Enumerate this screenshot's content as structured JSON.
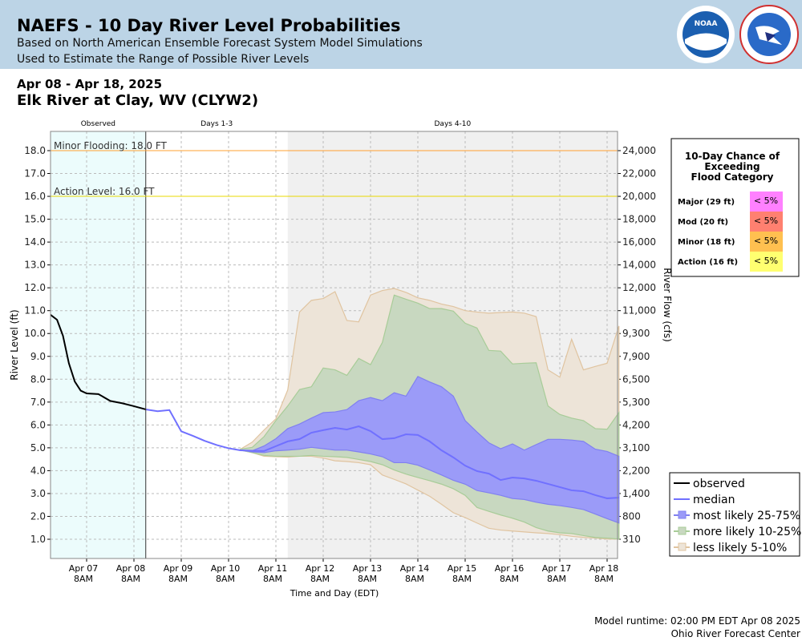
{
  "header": {
    "title": "NAEFS - 10 Day River Level Probabilities",
    "subtitle1": "Based on North American Ensemble Forecast System Model Simulations",
    "subtitle2": "Used to Estimate the Range of Possible River Levels",
    "logos": [
      "NOAA",
      "NATIONAL WEATHER SERVICE"
    ]
  },
  "date_range": "Apr 08 - Apr 18, 2025",
  "location": "Elk River at Clay, WV (CLYW2)",
  "footer": {
    "runtime": "Model runtime: 02:00 PM EDT Apr 08 2025",
    "center": "Ohio River Forecast Center"
  },
  "colors": {
    "observed": "#000000",
    "median": "#7070ff",
    "band_25_75": "#9b9bf8",
    "band_10_25": "#c8d8c0",
    "band_5_10": "#ede4d8",
    "minor": "#ffa030",
    "action": "#e8d800",
    "observed_bg": "#ecfcfc",
    "days4_10_bg": "#f0f0f0"
  },
  "chart_data": {
    "type": "area",
    "xlabel": "Time and Day (EDT)",
    "ylabel": "River Level (ft)",
    "ylabel_right": "River Flow (cfs)",
    "ylim": [
      0.2,
      19.0
    ],
    "xlim": [
      "2025-04-06T13:40",
      "2025-04-18T13:20"
    ],
    "grid": true,
    "period_labels": [
      {
        "label": "Observed",
        "start": "2025-04-06T13:40",
        "end": "2025-04-08T14:00"
      },
      {
        "label": "Days 1-3",
        "start": "2025-04-08T14:00",
        "end": "2025-04-11T14:00"
      },
      {
        "label": "Days 4-10",
        "start": "2025-04-11T14:00",
        "end": "2025-04-18T13:20"
      }
    ],
    "yticks": [
      1,
      2,
      3,
      4,
      5,
      6,
      7,
      8,
      9,
      10,
      11,
      12,
      13,
      14,
      15,
      16,
      17,
      18
    ],
    "yticks_right": [
      {
        "stage": 1,
        "label": "310"
      },
      {
        "stage": 2,
        "label": "800"
      },
      {
        "stage": 3,
        "label": "1,400"
      },
      {
        "stage": 4,
        "label": "2,200"
      },
      {
        "stage": 5,
        "label": "3,100"
      },
      {
        "stage": 6,
        "label": "4,200"
      },
      {
        "stage": 7,
        "label": "5,300"
      },
      {
        "stage": 8,
        "label": "6,500"
      },
      {
        "stage": 9,
        "label": "7,900"
      },
      {
        "stage": 10,
        "label": "9,300"
      },
      {
        "stage": 11,
        "label": "11,000"
      },
      {
        "stage": 12,
        "label": "12,000"
      },
      {
        "stage": 13,
        "label": "14,000"
      },
      {
        "stage": 14,
        "label": "16,000"
      },
      {
        "stage": 15,
        "label": "18,000"
      },
      {
        "stage": 16,
        "label": "20,000"
      },
      {
        "stage": 17,
        "label": "22,000"
      },
      {
        "stage": 18,
        "label": "24,000"
      }
    ],
    "xticks": [
      {
        "t": "2025-04-07T08:00",
        "l1": "Apr 07",
        "l2": "8AM"
      },
      {
        "t": "2025-04-08T08:00",
        "l1": "Apr 08",
        "l2": "8AM"
      },
      {
        "t": "2025-04-09T08:00",
        "l1": "Apr 09",
        "l2": "8AM"
      },
      {
        "t": "2025-04-10T08:00",
        "l1": "Apr 10",
        "l2": "8AM"
      },
      {
        "t": "2025-04-11T08:00",
        "l1": "Apr 11",
        "l2": "8AM"
      },
      {
        "t": "2025-04-12T08:00",
        "l1": "Apr 12",
        "l2": "8AM"
      },
      {
        "t": "2025-04-13T08:00",
        "l1": "Apr 13",
        "l2": "8AM"
      },
      {
        "t": "2025-04-14T08:00",
        "l1": "Apr 14",
        "l2": "8AM"
      },
      {
        "t": "2025-04-15T08:00",
        "l1": "Apr 15",
        "l2": "8AM"
      },
      {
        "t": "2025-04-16T08:00",
        "l1": "Apr 16",
        "l2": "8AM"
      },
      {
        "t": "2025-04-17T08:00",
        "l1": "Apr 17",
        "l2": "8AM"
      },
      {
        "t": "2025-04-18T08:00",
        "l1": "Apr 18",
        "l2": "8AM"
      }
    ],
    "thresholds": [
      {
        "label": "Minor Flooding: 18.0 FT",
        "value": 18.0,
        "color": "#ffa030"
      },
      {
        "label": "Action Level: 16.0 FT",
        "value": 16.0,
        "color": "#e8d800"
      }
    ],
    "observed": {
      "name": "observed",
      "t": [
        "2025-04-06T13:40",
        "2025-04-06T17:00",
        "2025-04-06T20:00",
        "2025-04-06T23:00",
        "2025-04-07T02:00",
        "2025-04-07T05:00",
        "2025-04-07T08:00",
        "2025-04-07T14:00",
        "2025-04-07T20:00",
        "2025-04-08T02:00",
        "2025-04-08T08:00",
        "2025-04-08T14:00"
      ],
      "y": [
        10.82,
        10.6,
        9.9,
        8.7,
        7.9,
        7.5,
        7.38,
        7.35,
        7.05,
        6.95,
        6.82,
        6.68
      ]
    },
    "median": {
      "name": "median",
      "t": [
        "2025-04-08T14:00",
        "2025-04-08T20:00",
        "2025-04-09T02:00",
        "2025-04-09T08:00",
        "2025-04-09T14:00",
        "2025-04-09T20:00",
        "2025-04-10T02:00",
        "2025-04-10T08:00"
      ],
      "y": [
        6.68,
        6.6,
        6.65,
        5.72,
        5.52,
        5.3,
        5.12,
        4.98
      ]
    },
    "forecast_start": "2025-04-10T14:00",
    "forecast_step_hours": 6,
    "median_forecast": [
      4.89,
      4.87,
      4.86,
      5.07,
      5.28,
      5.38,
      5.66,
      5.77,
      5.87,
      5.8,
      5.94,
      5.73,
      5.38,
      5.42,
      5.59,
      5.56,
      5.28,
      4.89,
      4.58,
      4.22,
      3.98,
      3.87,
      3.59,
      3.7,
      3.66,
      3.56,
      3.42,
      3.28,
      3.14,
      3.1,
      2.93,
      2.79,
      2.82
    ],
    "series": [
      {
        "name": "less likely 5-10%",
        "upper": [
          4.94,
          5.25,
          5.78,
          6.27,
          7.53,
          10.94,
          11.45,
          11.53,
          11.83,
          10.57,
          10.51,
          11.68,
          11.88,
          11.97,
          11.8,
          11.56,
          11.45,
          11.29,
          11.18,
          11.0,
          10.94,
          10.89,
          10.92,
          10.94,
          10.89,
          10.74,
          8.41,
          8.09,
          9.75,
          8.41,
          8.56,
          8.7,
          10.33
        ],
        "lower": [
          4.9,
          4.79,
          4.63,
          4.61,
          4.59,
          4.63,
          4.63,
          4.55,
          4.43,
          4.4,
          4.35,
          4.26,
          3.81,
          3.62,
          3.42,
          3.15,
          2.88,
          2.53,
          2.16,
          1.95,
          1.71,
          1.48,
          1.4,
          1.36,
          1.32,
          1.28,
          1.25,
          1.2,
          1.13,
          1.08,
          1.05,
          1.01,
          1.01
        ]
      },
      {
        "name": "more likely 10-25%",
        "upper": [
          4.94,
          5.02,
          5.49,
          6.19,
          6.83,
          7.55,
          7.67,
          8.49,
          8.41,
          8.17,
          8.91,
          8.64,
          9.61,
          11.68,
          11.5,
          11.33,
          11.09,
          11.09,
          10.98,
          10.45,
          10.24,
          9.26,
          9.23,
          8.67,
          8.7,
          8.72,
          6.83,
          6.46,
          6.3,
          6.19,
          5.84,
          5.81,
          6.54
        ],
        "lower": [
          4.9,
          4.79,
          4.67,
          4.63,
          4.63,
          4.63,
          4.67,
          4.63,
          4.61,
          4.58,
          4.49,
          4.4,
          4.26,
          4.03,
          3.85,
          3.7,
          3.56,
          3.41,
          3.21,
          2.92,
          2.39,
          2.22,
          2.06,
          1.92,
          1.75,
          1.51,
          1.36,
          1.28,
          1.25,
          1.16,
          1.08,
          1.05,
          1.01
        ]
      },
      {
        "name": "most likely 25-75%",
        "upper": [
          4.9,
          4.87,
          5.08,
          5.4,
          5.84,
          6.04,
          6.3,
          6.54,
          6.57,
          6.67,
          7.06,
          7.2,
          7.06,
          7.41,
          7.26,
          8.12,
          7.88,
          7.67,
          7.26,
          6.19,
          5.69,
          5.22,
          4.96,
          5.17,
          4.9,
          5.14,
          5.37,
          5.37,
          5.34,
          5.28,
          4.94,
          4.84,
          4.63
        ],
        "lower": [
          4.9,
          4.82,
          4.79,
          4.87,
          4.9,
          4.94,
          5.02,
          4.96,
          4.9,
          4.9,
          4.82,
          4.73,
          4.61,
          4.35,
          4.35,
          4.24,
          4.03,
          3.81,
          3.58,
          3.41,
          3.13,
          3.03,
          2.92,
          2.78,
          2.74,
          2.62,
          2.53,
          2.47,
          2.39,
          2.3,
          2.1,
          1.9,
          1.71
        ]
      }
    ],
    "legend": {
      "placement": "bottom-right",
      "entries": [
        "observed",
        "median",
        "most likely 25-75%",
        "more likely 10-25%",
        "less likely 5-10%"
      ]
    },
    "flood_table": {
      "title": [
        "10-Day Chance of",
        "Exceeding",
        "Flood Category"
      ],
      "rows": [
        {
          "label": "Major (29 ft)",
          "value": "< 5%",
          "color": "#ff80ff"
        },
        {
          "label": "Mod (20 ft)",
          "value": "< 5%",
          "color": "#ff8070"
        },
        {
          "label": "Minor (18 ft)",
          "value": "< 5%",
          "color": "#ffc050"
        },
        {
          "label": "Action (16 ft)",
          "value": "< 5%",
          "color": "#ffff70"
        }
      ]
    }
  }
}
